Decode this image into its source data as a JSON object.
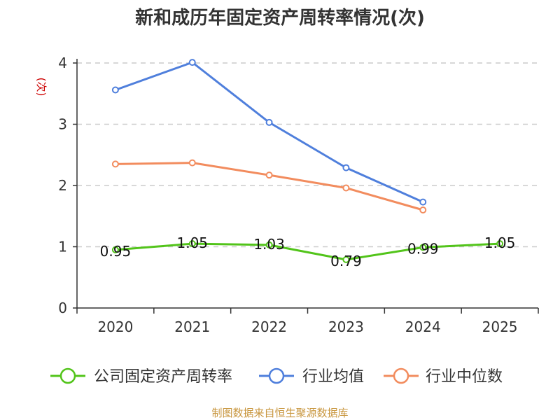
{
  "chart_data": {
    "type": "line",
    "title": "新和成历年固定资产周转率情况(次)",
    "ylabel": "(次)",
    "xlabel": "",
    "categories": [
      "2020",
      "2021",
      "2022",
      "2023",
      "2024",
      "2025"
    ],
    "ylim": [
      0,
      4
    ],
    "yticks": [
      0,
      1,
      2,
      3,
      4
    ],
    "grid": true,
    "legend_position": "bottom",
    "series": [
      {
        "name": "公司固定资产周转率",
        "color": "#52c41a",
        "values": [
          0.95,
          1.05,
          1.03,
          0.79,
          0.99,
          1.05
        ],
        "labels": [
          "0.95",
          "1.05",
          "1.03",
          "0.79",
          "0.99",
          "1.05"
        ]
      },
      {
        "name": "行业均值",
        "color": "#4f7fdc",
        "values": [
          3.56,
          4.01,
          3.03,
          2.29,
          1.73,
          null
        ]
      },
      {
        "name": "行业中位数",
        "color": "#f28c5e",
        "values": [
          2.35,
          2.37,
          2.17,
          1.96,
          1.6,
          null
        ]
      }
    ]
  },
  "source": "制图数据来自恒生聚源数据库"
}
